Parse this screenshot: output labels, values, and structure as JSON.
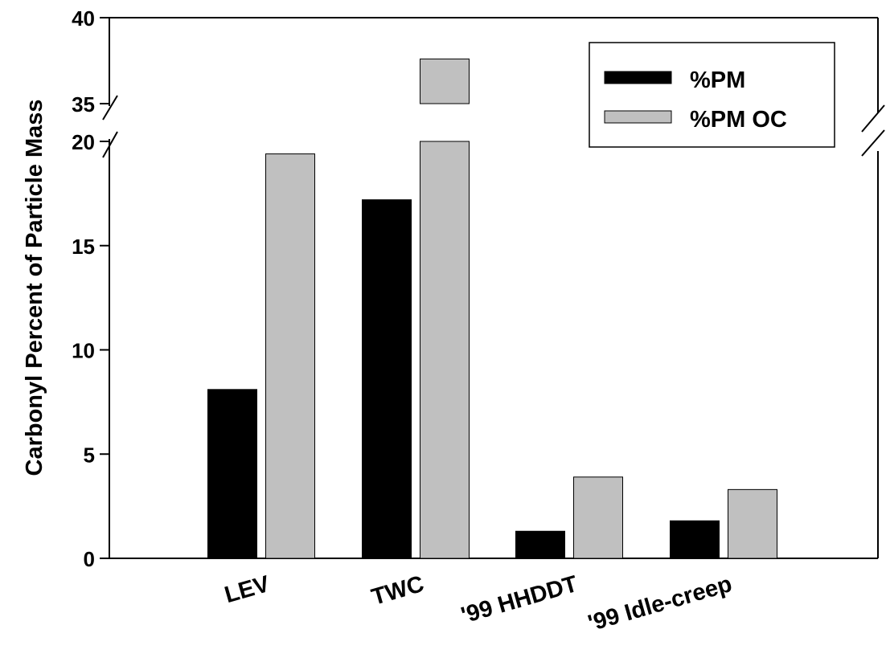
{
  "chart_data": {
    "type": "bar",
    "title": "",
    "xlabel": "",
    "ylabel": "Carbonyl Percent of Particle Mass",
    "y_axis_break": {
      "lower_range": [
        0,
        20
      ],
      "upper_range": [
        35,
        40
      ]
    },
    "yticks_lower": [
      "0",
      "5",
      "10",
      "15",
      "20"
    ],
    "yticks_upper": [
      "35",
      "40"
    ],
    "categories": [
      "LEV",
      "TWC",
      "'99 HHDDT",
      "'99 Idle-creep"
    ],
    "series": [
      {
        "name": "%PM",
        "color": "#000000",
        "values": [
          8.1,
          17.2,
          1.3,
          1.8
        ]
      },
      {
        "name": "%PM OC",
        "color": "#c0c0c0",
        "values": [
          19.4,
          37.6,
          3.9,
          3.3
        ]
      }
    ],
    "legend_position": "top-right",
    "grid": false
  }
}
